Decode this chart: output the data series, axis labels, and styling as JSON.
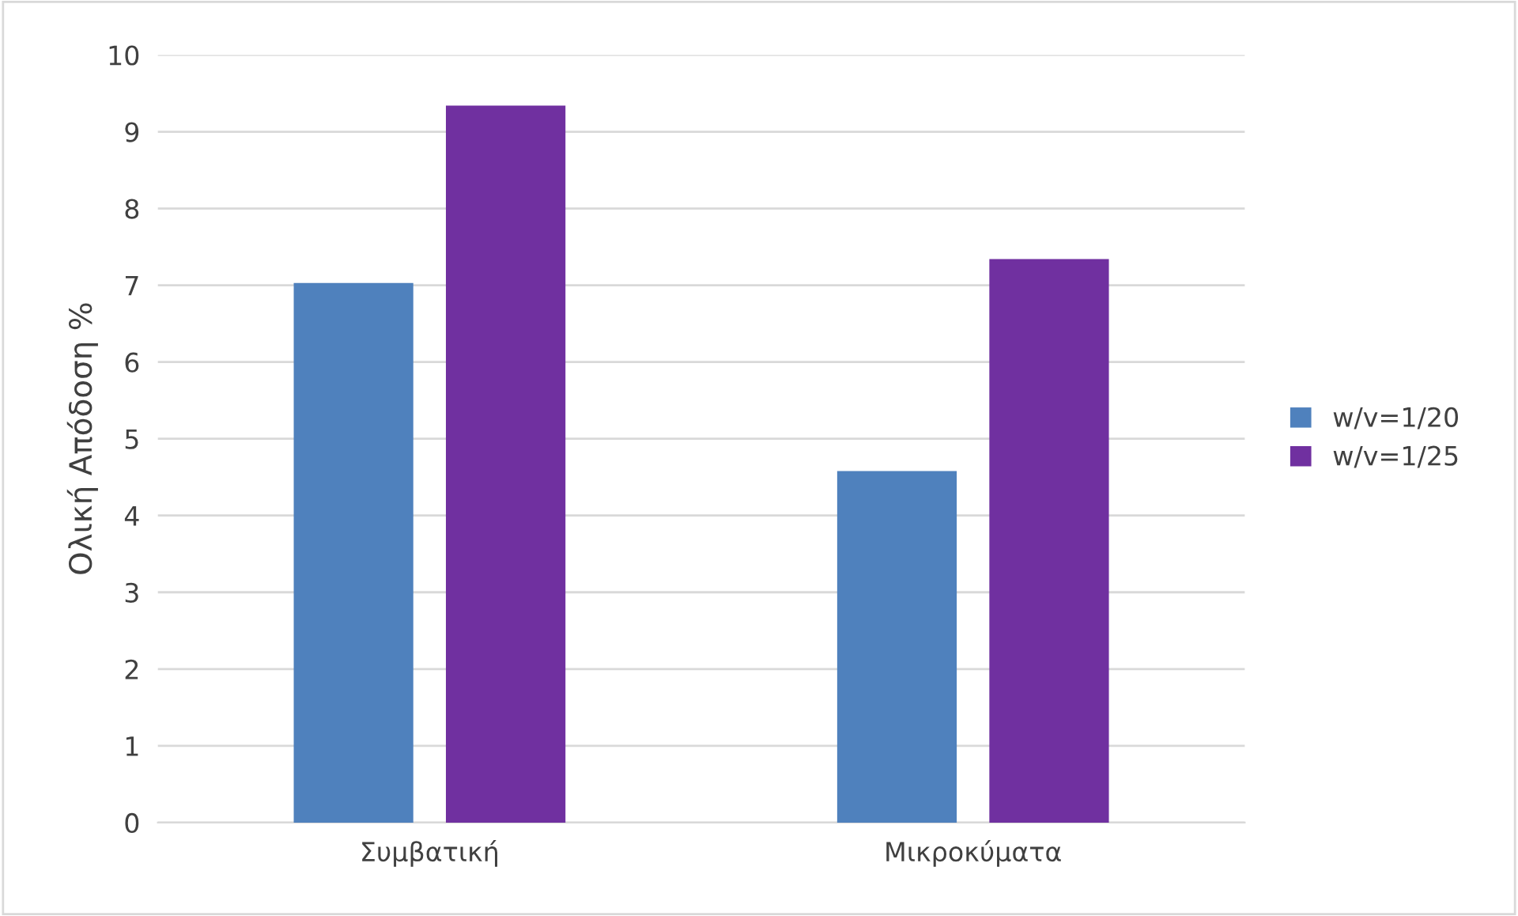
{
  "chart_data": {
    "type": "bar",
    "ylabel": "Ολική Απόδοση %",
    "categories": [
      "Συμβατική",
      "Μικροκύματα"
    ],
    "series": [
      {
        "name": "w/v=1/20",
        "color": "#4f81bd",
        "values": [
          7.03,
          4.58
        ]
      },
      {
        "name": "w/v=1/25",
        "color": "#7030a0",
        "values": [
          9.34,
          7.34
        ]
      }
    ],
    "ylim": [
      0,
      10
    ],
    "yticks": [
      0,
      1,
      2,
      3,
      4,
      5,
      6,
      7,
      8,
      9,
      10
    ],
    "grid": "y",
    "legend": "right"
  }
}
